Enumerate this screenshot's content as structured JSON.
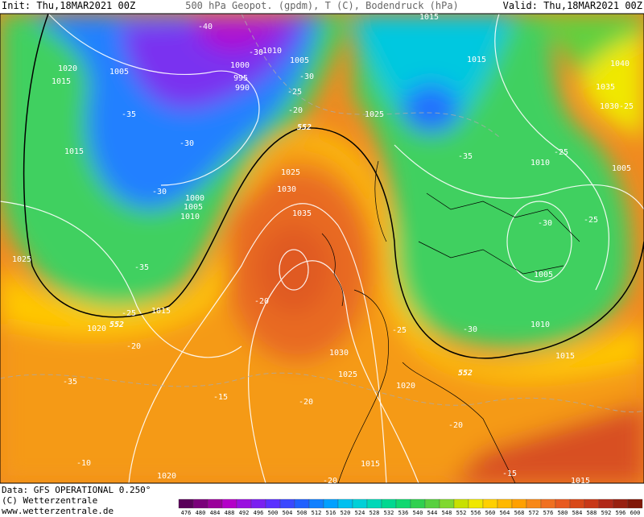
{
  "header": {
    "init": "Init: Thu,18MAR2021 00Z",
    "title": "500 hPa Geopot. (gpdm), T (C), Bodendruck (hPa)",
    "valid": "Valid: Thu,18MAR2021 00Z"
  },
  "footer": {
    "data": "Data: GFS OPERATIONAL 0.250°",
    "copyright": "(C) Wetterzentrale",
    "url": "www.wetterzentrale.de"
  },
  "colorbar": {
    "ticks": [
      476,
      480,
      484,
      488,
      492,
      496,
      500,
      504,
      508,
      512,
      516,
      520,
      524,
      528,
      532,
      536,
      540,
      544,
      548,
      552,
      556,
      560,
      564,
      568,
      572,
      576,
      580,
      584,
      588,
      592,
      596,
      600
    ],
    "colors": [
      "#5a005a",
      "#7a007a",
      "#9a009a",
      "#b400c8",
      "#9a10e0",
      "#7a20f0",
      "#5a30ff",
      "#3a48ff",
      "#2060ff",
      "#1080ff",
      "#00a0ff",
      "#00c0f0",
      "#00d0d8",
      "#00d8b8",
      "#00d890",
      "#10d870",
      "#30d050",
      "#58d040",
      "#80d830",
      "#c8e000",
      "#f0e800",
      "#ffd000",
      "#ffb800",
      "#ffa000",
      "#f88818",
      "#f07020",
      "#e85a20",
      "#d84818",
      "#c83818",
      "#b02818",
      "#982010",
      "#801808"
    ]
  },
  "map": {
    "contour_labels": [
      "1020",
      "1015",
      "1005",
      "-40",
      "1010",
      "1005",
      "1000",
      "995",
      "990",
      "-30",
      "-30",
      "-25",
      "-20",
      "552",
      "1025",
      "1015",
      "1015",
      "1040",
      "1035",
      "1030",
      "-25",
      "-35",
      "1015",
      "-30",
      "-30",
      "1000",
      "1005",
      "1010",
      "1025",
      "1030",
      "1035",
      "-35",
      "-25",
      "1010",
      "1005",
      "-30",
      "-25",
      "1025",
      "-35",
      "1005",
      "-20",
      "-25",
      "1015",
      "1020",
      "552",
      "-25",
      "-30",
      "1010",
      "-20",
      "1030",
      "1015",
      "-35",
      "1025",
      "1020",
      "552",
      "-15",
      "-20",
      "-20",
      "-10",
      "1020",
      "1015",
      "-15",
      "1015",
      "-20"
    ]
  }
}
